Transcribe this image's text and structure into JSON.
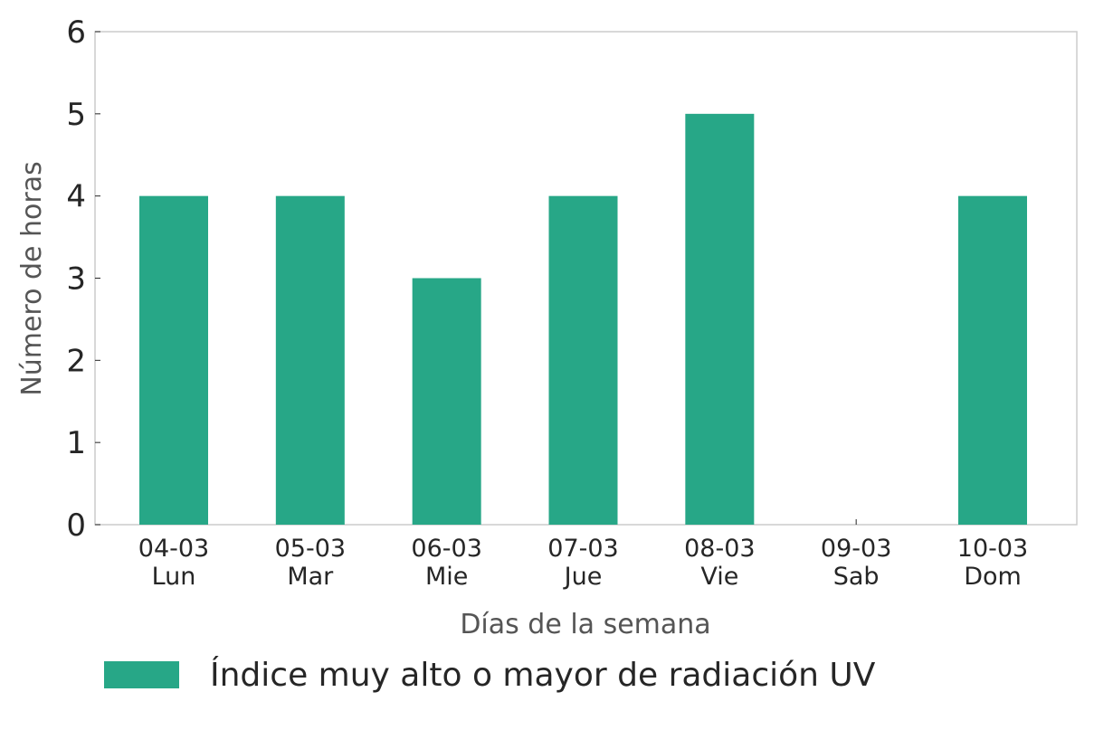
{
  "chart_data": {
    "type": "bar",
    "categories": [
      "04-03\nLun",
      "05-03\nMar",
      "06-03\nMie",
      "07-03\nJue",
      "08-03\nVie",
      "09-03\nSab",
      "10-03\nDom"
    ],
    "series": [
      {
        "name": "Índice muy alto o mayor de radiación UV",
        "color": "#27a787",
        "values": [
          4,
          4,
          3,
          4,
          5,
          0,
          4
        ]
      }
    ],
    "x_label": "Días de la semana",
    "y_label": "Número de horas",
    "ylim": [
      0,
      6
    ],
    "yticks": [
      0,
      1,
      2,
      3,
      4,
      5,
      6
    ],
    "grid": false,
    "legend": "bottom"
  }
}
